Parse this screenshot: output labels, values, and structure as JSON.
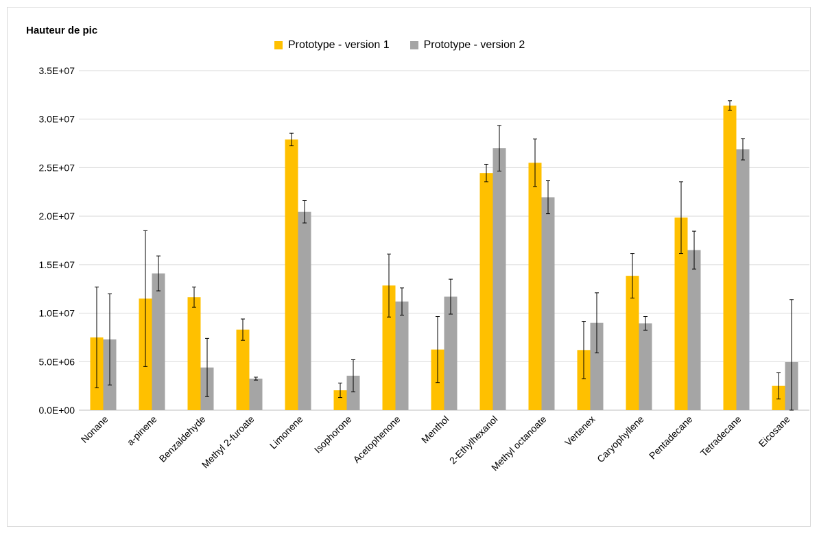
{
  "chart_data": {
    "type": "bar",
    "title": "Hauteur de pic",
    "xlabel": "",
    "ylabel": "",
    "ylim": [
      0,
      35000000
    ],
    "yticks": [
      "0.0E+00",
      "5.0E+06",
      "1.0E+07",
      "1.5E+07",
      "2.0E+07",
      "2.5E+07",
      "3.0E+07",
      "3.5E+07"
    ],
    "grid": true,
    "legend_position": "top",
    "categories": [
      "Nonane",
      "a-pinene",
      "Benzaldehyde",
      "Methyl 2-furoate",
      "Limonene",
      "Isophorone",
      "Acetophenone",
      "Menthol",
      "2-Ethylhexanol",
      "Methyl octanoate",
      "Vertenex",
      "Caryophyllene",
      "Pentadecane",
      "Tetradecane",
      "Eicosane"
    ],
    "series": [
      {
        "name": "Prototype - version 1",
        "color": "#FFC000",
        "values": [
          7500000,
          11500000,
          11650000,
          8300000,
          27900000,
          2050000,
          12850000,
          6250000,
          24450000,
          25500000,
          6200000,
          13850000,
          19850000,
          31400000,
          2500000
        ],
        "errors": [
          5200000,
          7000000,
          1050000,
          1100000,
          650000,
          750000,
          3250000,
          3400000,
          900000,
          2450000,
          2950000,
          2300000,
          3700000,
          500000,
          1350000
        ]
      },
      {
        "name": "Prototype - version 2",
        "color": "#A5A5A5",
        "values": [
          7300000,
          14100000,
          4400000,
          3250000,
          20450000,
          3550000,
          11200000,
          11700000,
          27000000,
          21950000,
          9000000,
          8950000,
          16500000,
          26900000,
          4950000
        ],
        "errors": [
          4700000,
          1800000,
          3000000,
          150000,
          1150000,
          1650000,
          1400000,
          1800000,
          2350000,
          1700000,
          3100000,
          700000,
          1950000,
          1100000,
          6450000
        ]
      }
    ]
  }
}
